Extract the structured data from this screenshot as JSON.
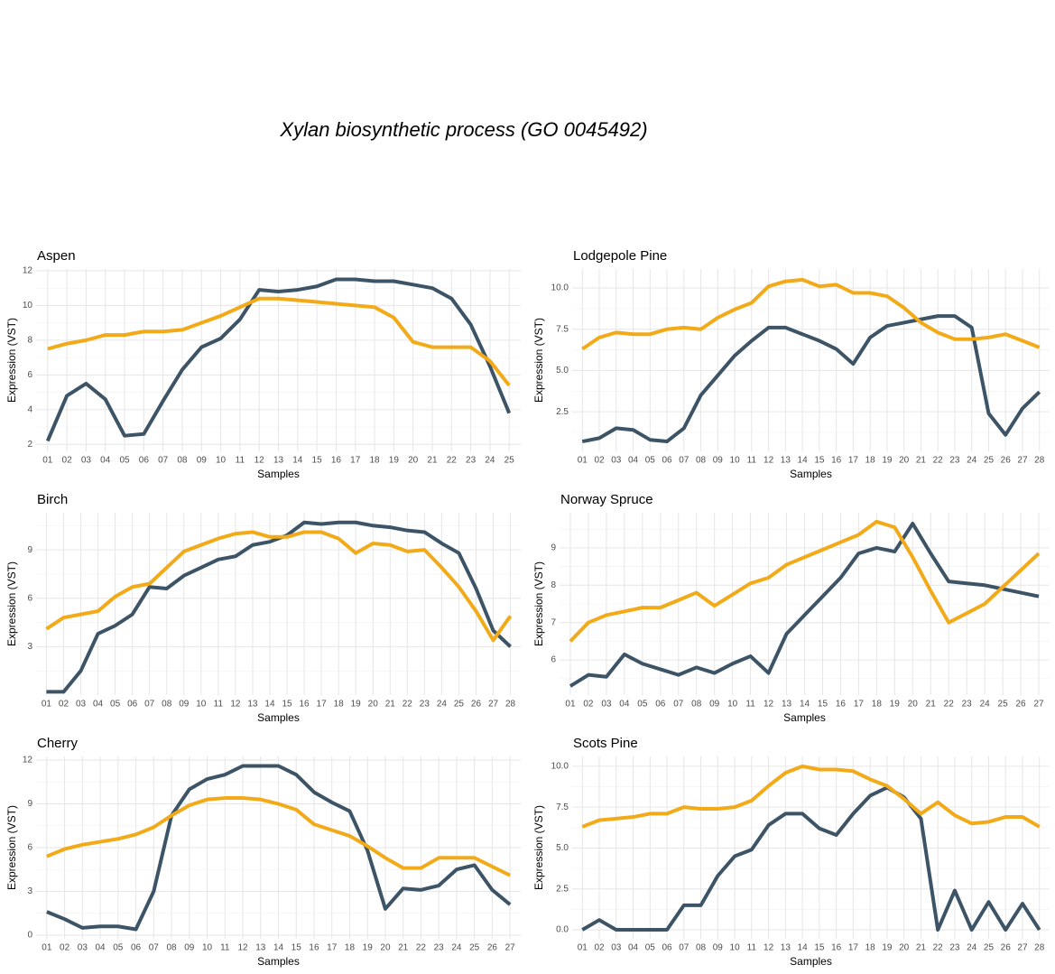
{
  "title": "Xylan biosynthetic process (GO 0045492)",
  "chart_data": [
    {
      "type": "line",
      "title": "Aspen",
      "xlabel": "Samples",
      "ylabel": "Expression (VST)",
      "categories": [
        "01",
        "02",
        "03",
        "04",
        "05",
        "06",
        "07",
        "08",
        "09",
        "10",
        "11",
        "12",
        "13",
        "14",
        "15",
        "16",
        "17",
        "18",
        "19",
        "20",
        "21",
        "22",
        "23",
        "24",
        "25"
      ],
      "series": [
        {
          "color": "#3d5466",
          "values": [
            2.2,
            4.8,
            5.5,
            4.6,
            2.5,
            2.6,
            4.5,
            6.3,
            7.6,
            8.1,
            9.2,
            10.9,
            10.8,
            10.9,
            11.1,
            11.5,
            11.5,
            11.4,
            11.4,
            11.2,
            11.0,
            10.4,
            8.9,
            6.5,
            3.8
          ]
        },
        {
          "color": "#f2aa18",
          "values": [
            7.5,
            7.8,
            8.0,
            8.3,
            8.3,
            8.5,
            8.5,
            8.6,
            9.0,
            9.4,
            9.9,
            10.4,
            10.4,
            10.3,
            10.2,
            10.1,
            10.0,
            9.9,
            9.3,
            7.9,
            7.6,
            7.6,
            7.6,
            6.8,
            5.4
          ]
        }
      ],
      "ylim": [
        1.6,
        12.1
      ],
      "yticks": [
        2,
        4,
        6,
        8,
        10,
        12
      ],
      "grid": true
    },
    {
      "type": "line",
      "title": "Lodgepole Pine",
      "xlabel": "Samples",
      "ylabel": "Expression (VST)",
      "categories": [
        "01",
        "02",
        "03",
        "04",
        "05",
        "06",
        "07",
        "08",
        "09",
        "10",
        "11",
        "12",
        "13",
        "14",
        "15",
        "16",
        "17",
        "18",
        "19",
        "20",
        "21",
        "22",
        "23",
        "24",
        "25",
        "26",
        "27",
        "28"
      ],
      "series": [
        {
          "color": "#3d5466",
          "values": [
            0.7,
            0.9,
            1.5,
            1.4,
            0.8,
            0.7,
            1.5,
            3.5,
            4.7,
            5.9,
            6.8,
            7.6,
            7.6,
            7.2,
            6.8,
            6.3,
            5.4,
            7.0,
            7.7,
            7.9,
            8.1,
            8.3,
            8.3,
            7.6,
            2.4,
            1.1,
            2.7,
            3.7
          ]
        },
        {
          "color": "#f2aa18",
          "values": [
            6.3,
            7.0,
            7.3,
            7.2,
            7.2,
            7.5,
            7.6,
            7.5,
            8.2,
            8.7,
            9.1,
            10.1,
            10.4,
            10.5,
            10.1,
            10.2,
            9.7,
            9.7,
            9.5,
            8.8,
            7.9,
            7.3,
            6.9,
            6.9,
            7.0,
            7.2,
            6.8,
            6.4
          ]
        }
      ],
      "ylim": [
        0.1,
        11.15
      ],
      "yticks": [
        {
          "value": 2.5,
          "label": "2.5"
        },
        {
          "value": 5,
          "label": "5.0"
        },
        {
          "value": 7.5,
          "label": "7.5"
        },
        {
          "value": 10,
          "label": "10.0"
        }
      ],
      "grid": true
    },
    {
      "type": "line",
      "title": "Birch",
      "xlabel": "Samples",
      "ylabel": "Expression (VST)",
      "categories": [
        "01",
        "02",
        "03",
        "04",
        "05",
        "06",
        "07",
        "08",
        "09",
        "10",
        "11",
        "12",
        "13",
        "14",
        "15",
        "16",
        "17",
        "18",
        "19",
        "20",
        "21",
        "22",
        "23",
        "24",
        "25",
        "26",
        "27",
        "28"
      ],
      "series": [
        {
          "color": "#3d5466",
          "values": [
            0.2,
            0.2,
            1.5,
            3.8,
            4.3,
            5.0,
            6.7,
            6.6,
            7.4,
            7.9,
            8.4,
            8.6,
            9.3,
            9.5,
            9.9,
            10.7,
            10.6,
            10.7,
            10.7,
            10.5,
            10.4,
            10.2,
            10.1,
            9.4,
            8.8,
            6.6,
            4.0,
            3.0
          ]
        },
        {
          "color": "#f2aa18",
          "values": [
            4.1,
            4.8,
            5.0,
            5.2,
            6.1,
            6.7,
            6.9,
            7.9,
            8.9,
            9.3,
            9.7,
            10.0,
            10.1,
            9.8,
            9.8,
            10.1,
            10.1,
            9.7,
            8.8,
            9.4,
            9.3,
            8.9,
            9.0,
            7.9,
            6.7,
            5.2,
            3.4,
            4.9
          ]
        }
      ],
      "ylim": [
        0,
        11.3
      ],
      "yticks": [
        3,
        6,
        9
      ],
      "grid": true
    },
    {
      "type": "line",
      "title": "Norway Spruce",
      "xlabel": "Samples",
      "ylabel": "Expression (VST)",
      "categories": [
        "01",
        "02",
        "03",
        "04",
        "05",
        "06",
        "07",
        "08",
        "09",
        "10",
        "11",
        "12",
        "13",
        "14",
        "15",
        "16",
        "17",
        "18",
        "19",
        "20",
        "21",
        "22",
        "23",
        "24",
        "25",
        "26",
        "27"
      ],
      "series": [
        {
          "color": "#3d5466",
          "values": [
            5.3,
            5.6,
            5.55,
            6.15,
            5.9,
            5.75,
            5.6,
            5.8,
            5.65,
            5.9,
            6.1,
            5.65,
            6.7,
            7.2,
            7.7,
            8.2,
            8.85,
            9.0,
            8.9,
            9.65,
            8.85,
            8.1,
            8.05,
            8.0,
            7.9,
            7.8,
            7.7
          ]
        },
        {
          "color": "#f2aa18",
          "values": [
            6.5,
            7.0,
            7.2,
            7.3,
            7.4,
            7.4,
            7.6,
            7.8,
            7.45,
            7.75,
            8.05,
            8.2,
            8.55,
            8.75,
            8.95,
            9.15,
            9.35,
            9.7,
            9.55,
            8.75,
            7.85,
            7.0,
            7.25,
            7.5,
            7.95,
            8.4,
            8.85
          ]
        }
      ],
      "ylim": [
        5.06,
        9.94
      ],
      "yticks": [
        6,
        7,
        8,
        9
      ],
      "grid": true
    },
    {
      "type": "line",
      "title": "Cherry",
      "xlabel": "Samples",
      "ylabel": "Expression (VST)",
      "categories": [
        "01",
        "02",
        "03",
        "04",
        "05",
        "06",
        "07",
        "08",
        "09",
        "10",
        "11",
        "12",
        "13",
        "14",
        "15",
        "16",
        "17",
        "18",
        "19",
        "20",
        "21",
        "22",
        "23",
        "24",
        "25",
        "26",
        "27"
      ],
      "series": [
        {
          "color": "#3d5466",
          "values": [
            1.6,
            1.1,
            0.5,
            0.6,
            0.6,
            0.4,
            3.0,
            8.2,
            10.0,
            10.7,
            11.0,
            11.6,
            11.6,
            11.6,
            11.0,
            9.8,
            9.1,
            8.5,
            5.8,
            1.8,
            3.2,
            3.1,
            3.4,
            4.5,
            4.8,
            3.1,
            2.1
          ]
        },
        {
          "color": "#f2aa18",
          "values": [
            5.4,
            5.9,
            6.2,
            6.4,
            6.6,
            6.9,
            7.4,
            8.2,
            8.9,
            9.3,
            9.4,
            9.4,
            9.3,
            9.0,
            8.6,
            7.6,
            7.2,
            6.8,
            6.1,
            5.3,
            4.6,
            4.6,
            5.3,
            5.3,
            5.3,
            4.7,
            4.1
          ]
        }
      ],
      "ylim": [
        -0.25,
        12.25
      ],
      "yticks": [
        0,
        3,
        6,
        9,
        12
      ],
      "grid": true
    },
    {
      "type": "line",
      "title": "Scots Pine",
      "xlabel": "Samples",
      "ylabel": "Expression (VST)",
      "categories": [
        "01",
        "02",
        "03",
        "04",
        "05",
        "06",
        "07",
        "08",
        "09",
        "10",
        "11",
        "12",
        "13",
        "14",
        "15",
        "16",
        "17",
        "18",
        "19",
        "20",
        "21",
        "22",
        "23",
        "24",
        "25",
        "26",
        "27",
        "28"
      ],
      "series": [
        {
          "color": "#3d5466",
          "values": [
            0.0,
            0.6,
            0.0,
            0.0,
            0.0,
            0.0,
            1.5,
            1.5,
            3.3,
            4.5,
            4.9,
            6.4,
            7.1,
            7.1,
            6.2,
            5.8,
            7.1,
            8.2,
            8.7,
            8.1,
            6.8,
            0.0,
            2.4,
            0.0,
            1.7,
            0.0,
            1.6,
            0.0
          ]
        },
        {
          "color": "#f2aa18",
          "values": [
            6.3,
            6.7,
            6.8,
            6.9,
            7.1,
            7.1,
            7.5,
            7.4,
            7.4,
            7.5,
            7.9,
            8.8,
            9.6,
            10.0,
            9.8,
            9.8,
            9.7,
            9.2,
            8.8,
            8.0,
            7.1,
            7.8,
            7.0,
            6.5,
            6.6,
            6.9,
            6.9,
            6.3
          ]
        }
      ],
      "ylim": [
        -0.55,
        10.6
      ],
      "yticks": [
        {
          "value": 0,
          "label": "0.0"
        },
        {
          "value": 2.5,
          "label": "2.5"
        },
        {
          "value": 5,
          "label": "5.0"
        },
        {
          "value": 7.5,
          "label": "7.5"
        },
        {
          "value": 10,
          "label": "10.0"
        }
      ],
      "grid": true
    }
  ]
}
